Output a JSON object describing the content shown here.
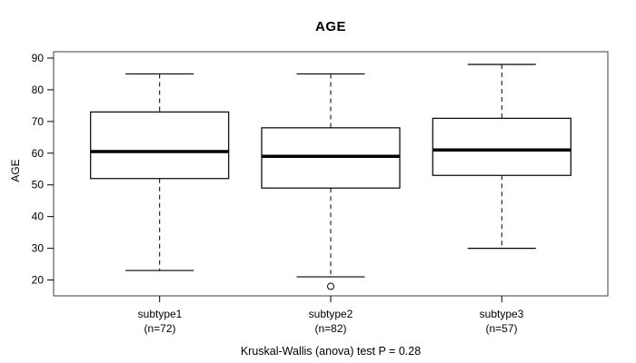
{
  "chart_data": {
    "type": "boxplot",
    "title": "AGE",
    "ylabel": "AGE",
    "yticks": [
      20,
      30,
      40,
      50,
      60,
      70,
      80,
      90
    ],
    "ylim": [
      15,
      92
    ],
    "grid": false,
    "footnote": "Kruskal-Wallis (anova) test P = 0.28",
    "groups": [
      {
        "label": "subtype1",
        "sublabel": "(n=72)",
        "lower_whisker": 23,
        "q1": 52,
        "median": 60.5,
        "q3": 73,
        "upper_whisker": 85,
        "outliers": []
      },
      {
        "label": "subtype2",
        "sublabel": "(n=82)",
        "lower_whisker": 21,
        "q1": 49,
        "median": 59,
        "q3": 68,
        "upper_whisker": 85,
        "outliers": [
          18
        ]
      },
      {
        "label": "subtype3",
        "sublabel": "(n=57)",
        "lower_whisker": 30,
        "q1": 53,
        "median": 61,
        "q3": 71,
        "upper_whisker": 88,
        "outliers": []
      }
    ],
    "colors": {
      "line": "#000000",
      "frame": "#5e5e5e",
      "background": "#ffffff",
      "box_fill": "#ffffff"
    }
  }
}
